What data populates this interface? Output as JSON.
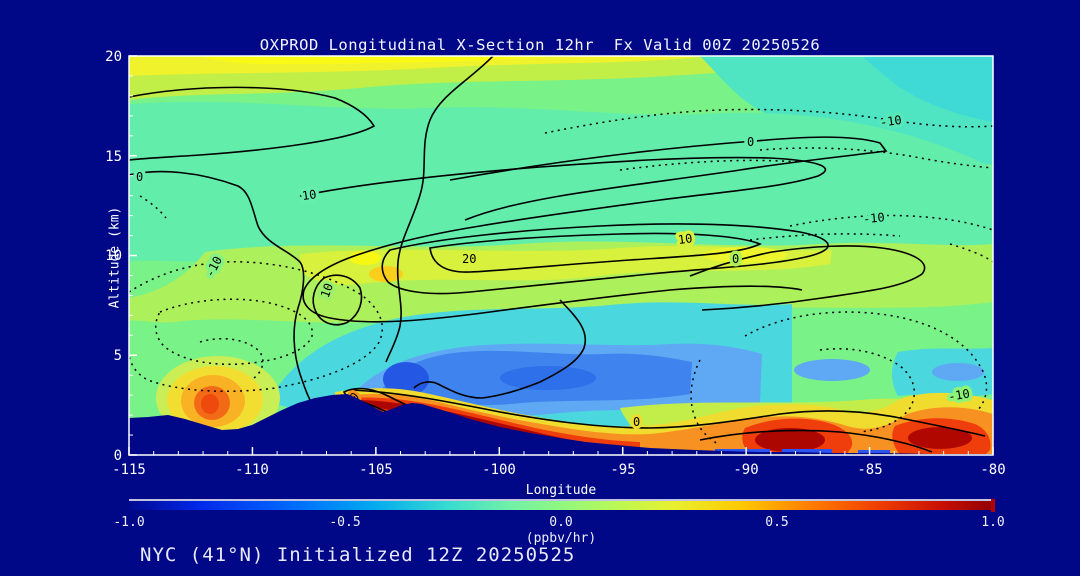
{
  "title": "OXPROD Longitudinal X-Section 12hr  Fx Valid 00Z 20250526",
  "footer": "NYC (41°N) Initialized 12Z 20250525",
  "axes": {
    "x": {
      "label": "Longitude",
      "ticks": [
        "-115",
        "-110",
        "-105",
        "-100",
        "-95",
        "-90",
        "-85",
        "-80"
      ]
    },
    "y": {
      "label": "Altitude (km)",
      "ticks": [
        "20",
        "15",
        "10",
        "5",
        "0"
      ]
    }
  },
  "colorbar": {
    "ticks": [
      "-1.0",
      "-0.5",
      "0.0",
      "0.5",
      "1.0"
    ],
    "units": "(ppbv/hr)"
  },
  "cl": [
    "0",
    "10",
    "20",
    "10",
    "-10",
    "10",
    "0",
    "0",
    "-10",
    "-10",
    "10",
    "0",
    "0",
    "-10"
  ],
  "chart_data": {
    "type": "heatmap",
    "subtype": "filled-contour-vertical-cross-section",
    "title": "OXPROD Longitudinal X-Section 12hr  Fx Valid 00Z 20250526",
    "subtitle": "NYC (41°N) Initialized 12Z 20250525",
    "xlabel": "Longitude",
    "ylabel": "Altitude (km)",
    "xlim": [
      -115,
      -80
    ],
    "ylim": [
      0,
      20
    ],
    "x_ticks": [
      -115,
      -110,
      -105,
      -100,
      -95,
      -90,
      -85,
      -80
    ],
    "y_ticks": [
      0,
      5,
      10,
      15,
      20
    ],
    "grid": false,
    "colorbar": {
      "label": "(ppbv/hr)",
      "range": [
        -1.0,
        1.0
      ],
      "ticks": [
        -1.0,
        -0.5,
        0.0,
        0.5,
        1.0
      ],
      "orientation": "horizontal",
      "palette": [
        "#000890",
        "#0028e8",
        "#0064ff",
        "#00a8f0",
        "#38dcd0",
        "#70f0a8",
        "#90f880",
        "#b8f858",
        "#e8f030",
        "#ffc800",
        "#ff7c00",
        "#ee3c00",
        "#c81000",
        "#900000"
      ]
    },
    "overlay_line_contours": {
      "labeled_levels": [
        -10,
        0,
        10,
        20
      ],
      "positive_linestyle": "solid",
      "negative_linestyle": "dotted"
    },
    "features": [
      {
        "name": "upper-level positive production band",
        "lon_range": [
          -109,
          -85
        ],
        "alt_km": [
          9.5,
          13
        ],
        "fill_ppbv_hr": "+0.1 to +0.3",
        "line_contour_max": 20
      },
      {
        "name": "tropopause-level yellow band",
        "lon_range": [
          -115,
          -96
        ],
        "alt_km": [
          19,
          20
        ],
        "fill_ppbv_hr": "+0.2"
      },
      {
        "name": "mid-level negative pool",
        "lon_range": [
          -107,
          -93
        ],
        "alt_km": [
          2,
          6
        ],
        "fill_ppbv_hr": "-0.4 to -0.7"
      },
      {
        "name": "boundary-layer hotspot west",
        "lon": -111.5,
        "alt_km": 1.8,
        "fill_ppbv_hr": "+0.6"
      },
      {
        "name": "surface production plume along slope",
        "lon_range": [
          -106,
          -92
        ],
        "alt_km": [
          0,
          2.2
        ],
        "fill_ppbv_hr": "+0.8 to +1.0"
      },
      {
        "name": "surface maxima east",
        "lon_range": [
          -88.5,
          -80.5
        ],
        "alt_km": [
          0,
          1.2
        ],
        "fill_ppbv_hr": "+0.9 to +1.0"
      },
      {
        "name": "upper-right negative region (dotted -10 contours)",
        "lon_range": [
          -95,
          -80
        ],
        "alt_km": [
          8,
          19
        ]
      },
      {
        "name": "terrain silhouette",
        "description": "dark topography rising to ~2.8 km near lon -106, descending to near sea level east of -95"
      }
    ]
  }
}
